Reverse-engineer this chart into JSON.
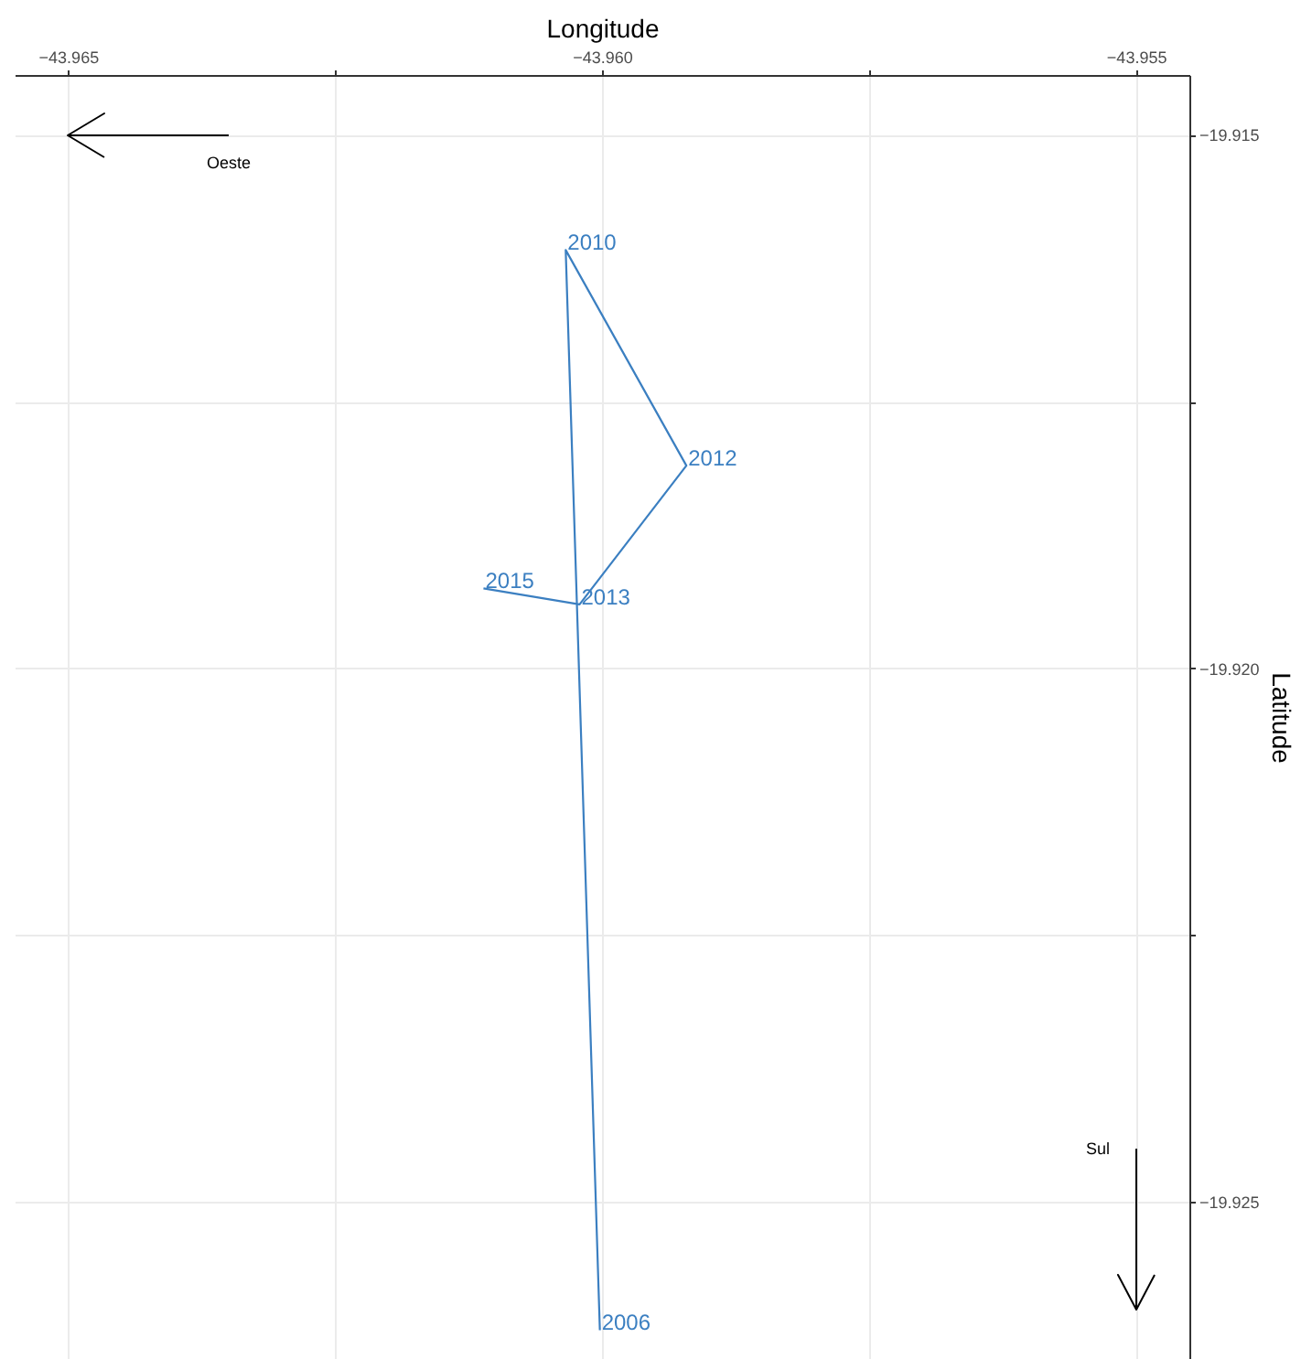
{
  "chart_data": {
    "type": "line",
    "xlabel": "Longitude",
    "ylabel": "Latitude",
    "x": [
      -43.96002,
      -43.96034,
      -43.95921,
      -43.96021,
      -43.96111
    ],
    "series": [
      {
        "color": "#3b7fc1",
        "values": [
          -19.9262,
          -19.91608,
          -19.9181,
          -19.9194,
          -19.91925
        ]
      }
    ],
    "xlim": [
      -43.9655,
      -43.9545
    ],
    "ylim": [
      -19.92647,
      -19.91444
    ],
    "xticks": [
      {
        "value": -43.965,
        "label": "−43.965"
      },
      {
        "value": -43.9625,
        "label": null
      },
      {
        "value": -43.96,
        "label": "−43.960"
      },
      {
        "value": -43.9575,
        "label": null
      },
      {
        "value": -43.955,
        "label": "−43.955"
      }
    ],
    "yticks": [
      {
        "value": -19.915,
        "label": "−19.915"
      },
      {
        "value": -19.9175,
        "label": null
      },
      {
        "value": -19.92,
        "label": "−19.920"
      },
      {
        "value": -19.9225,
        "label": null
      },
      {
        "value": -19.925,
        "label": "−19.925"
      }
    ],
    "grid": true,
    "marker": "none",
    "line_style": "solid",
    "annotations": [
      "Oeste",
      "Sul",
      {
        "text": "2006",
        "x": -43.96002,
        "y": -19.9262
      },
      {
        "text": "2010",
        "x": -43.96034,
        "y": -19.91608
      },
      {
        "text": "2012",
        "x": -43.95921,
        "y": -19.9181
      },
      {
        "text": "2013",
        "x": -43.96021,
        "y": -19.9194
      },
      {
        "text": "2015",
        "x": -43.96111,
        "y": -19.91925
      }
    ]
  }
}
